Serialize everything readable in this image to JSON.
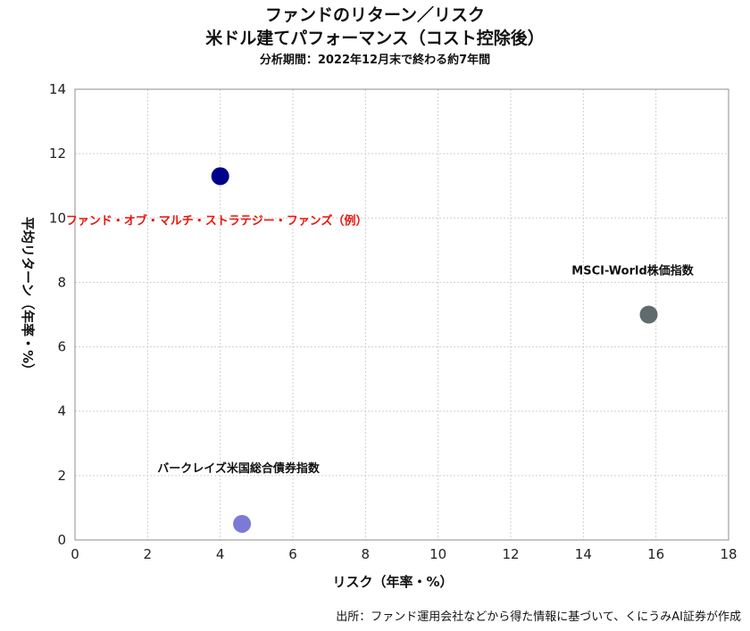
{
  "chart_data": {
    "type": "scatter",
    "title": "ファンドのリターン／リスク",
    "subtitle": "米ドル建てパフォーマンス（コスト控除後）",
    "subtitle2": "分析期間：2022年12月末で終わる約7年間",
    "xlabel": "リスク（年率・%）",
    "ylabel": "平均リターン（年率・%）",
    "xlim": [
      0,
      18
    ],
    "ylim": [
      0,
      14
    ],
    "xticks": [
      0,
      2,
      4,
      6,
      8,
      10,
      12,
      14,
      16,
      18
    ],
    "yticks": [
      0,
      2,
      4,
      6,
      8,
      10,
      12,
      14
    ],
    "grid": true,
    "points": [
      {
        "label": "ファンド・オブ・マルチ・ストラテジー・ファンズ（例）",
        "x": 4.0,
        "y": 11.3,
        "color": "#00008b",
        "label_color": "#e8150c"
      },
      {
        "label": "MSCI-World株価指数",
        "x": 15.8,
        "y": 7.0,
        "color": "#5f6b6d",
        "label_color": "#111111"
      },
      {
        "label": "バークレイズ米国総合債券指数",
        "x": 4.6,
        "y": 0.5,
        "color": "#7b7bd6",
        "label_color": "#111111"
      }
    ]
  },
  "source": "出所：ファンド運用会社などから得た情報に基づいて、くにうみAI証券が作成"
}
